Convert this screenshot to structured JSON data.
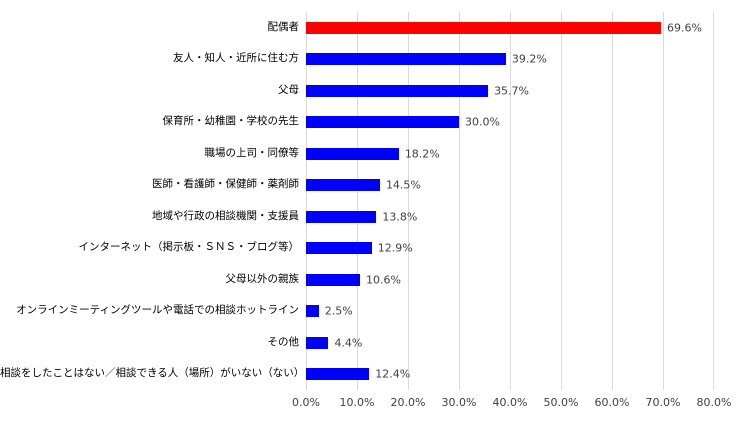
{
  "chart_data": {
    "type": "bar",
    "orientation": "horizontal",
    "title": "",
    "xlabel": "",
    "ylabel": "",
    "xlim": [
      0,
      80
    ],
    "grid": true,
    "gridline_color": "#d9d9d9",
    "highlight_color": "#ff0000",
    "default_color": "#0000ff",
    "label_color": "#404040",
    "categories": [
      "配偶者",
      "友人・知人・近所に住む方",
      "父母",
      "保育所・幼稚園・学校の先生",
      "職場の上司・同僚等",
      "医師・看護師・保健師・薬剤師",
      "地域や行政の相談機関・支援員",
      "インターネット（掲示板・ＳＮＳ・ブログ等）",
      "父母以外の親族",
      "オンラインミーティングツールや電話での相談ホットライン",
      "その他",
      "相談をしたことはない／相談できる人（場所）がいない（ない）"
    ],
    "values": [
      69.6,
      39.2,
      35.7,
      30.0,
      18.2,
      14.5,
      13.8,
      12.9,
      10.6,
      2.5,
      4.4,
      12.4
    ],
    "value_labels": [
      "69.6%",
      "39.2%",
      "35.7%",
      "30.0%",
      "18.2%",
      "14.5%",
      "13.8%",
      "12.9%",
      "10.6%",
      "2.5%",
      "4.4%",
      "12.4%"
    ],
    "bar_colors": [
      "#ff0000",
      "#0000ff",
      "#0000ff",
      "#0000ff",
      "#0000ff",
      "#0000ff",
      "#0000ff",
      "#0000ff",
      "#0000ff",
      "#0000ff",
      "#0000ff",
      "#0000ff"
    ],
    "x_ticks": [
      "0.0%",
      "10.0%",
      "20.0%",
      "30.0%",
      "40.0%",
      "50.0%",
      "60.0%",
      "70.0%",
      "80.0%"
    ]
  }
}
